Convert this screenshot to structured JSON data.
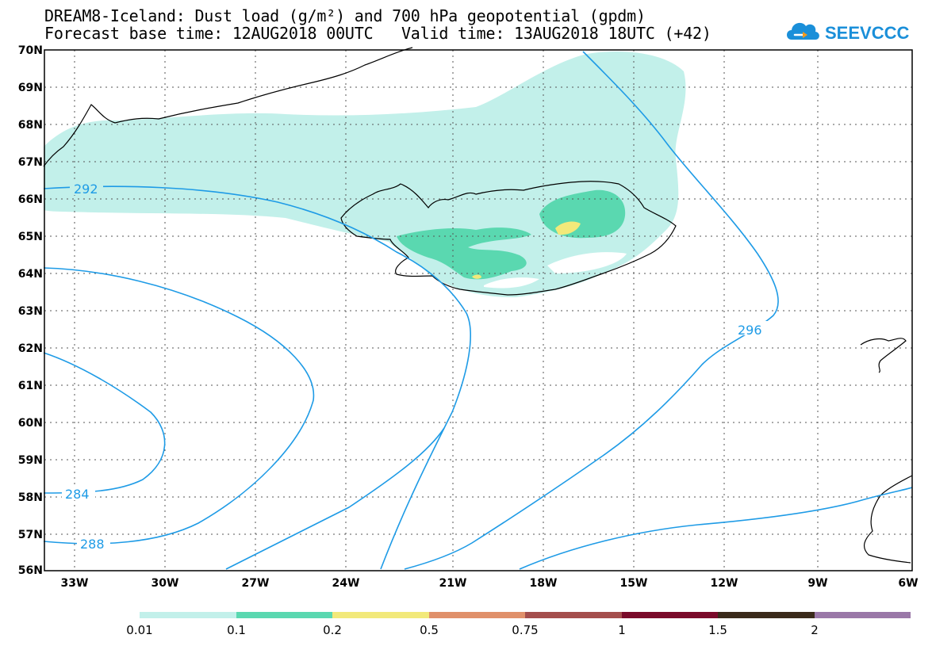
{
  "header": {
    "title_line1": "DREAM8-Iceland: Dust load (g/m²) and 700 hPa geopotential (gpdm)",
    "title_line2": "Forecast base time: 12AUG2018 00UTC   Valid time: 13AUG2018 18UTC (+42)"
  },
  "logo": {
    "text": "SEEVCCC",
    "icon": "cloud-icon",
    "color": "#1a8fd9"
  },
  "map": {
    "lat_labels": [
      "70N",
      "69N",
      "68N",
      "67N",
      "66N",
      "65N",
      "64N",
      "63N",
      "62N",
      "61N",
      "60N",
      "59N",
      "58N",
      "57N",
      "56N"
    ],
    "lon_labels": [
      "33W",
      "30W",
      "27W",
      "24W",
      "21W",
      "18W",
      "15W",
      "12W",
      "9W",
      "6W"
    ],
    "contour_labels": [
      "292",
      "296",
      "284",
      "288"
    ],
    "contour_color": "#1e9be6",
    "coast_color": "#000000"
  },
  "colorbar": {
    "labels": [
      "0.01",
      "0.1",
      "0.2",
      "0.5",
      "0.75",
      "1",
      "1.5",
      "2"
    ],
    "colors": [
      "#c2f0ea",
      "#5ad8b0",
      "#f2e97a",
      "#e0906a",
      "#a44e4c",
      "#7a0a2a",
      "#3a2a1a",
      "#9a78a8"
    ]
  }
}
